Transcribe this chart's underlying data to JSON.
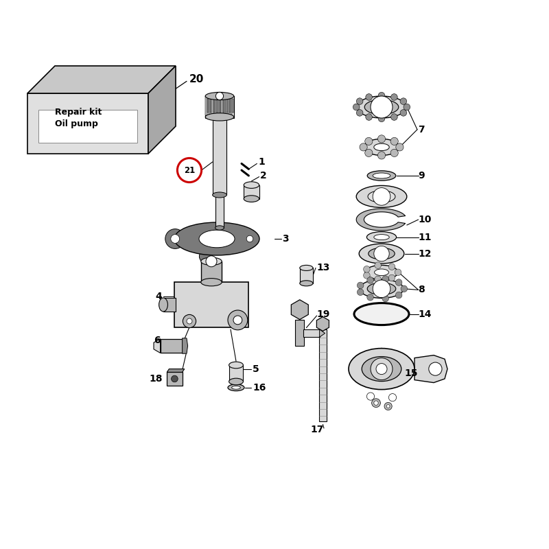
{
  "bg_color": "#ffffff",
  "lc": "#000000",
  "red": "#cc0000",
  "g_light": "#d8d8d8",
  "g_mid": "#b8b8b8",
  "g_dark": "#909090",
  "g_darker": "#707070",
  "repair_kit_text": "Repair kit\nOil pump"
}
